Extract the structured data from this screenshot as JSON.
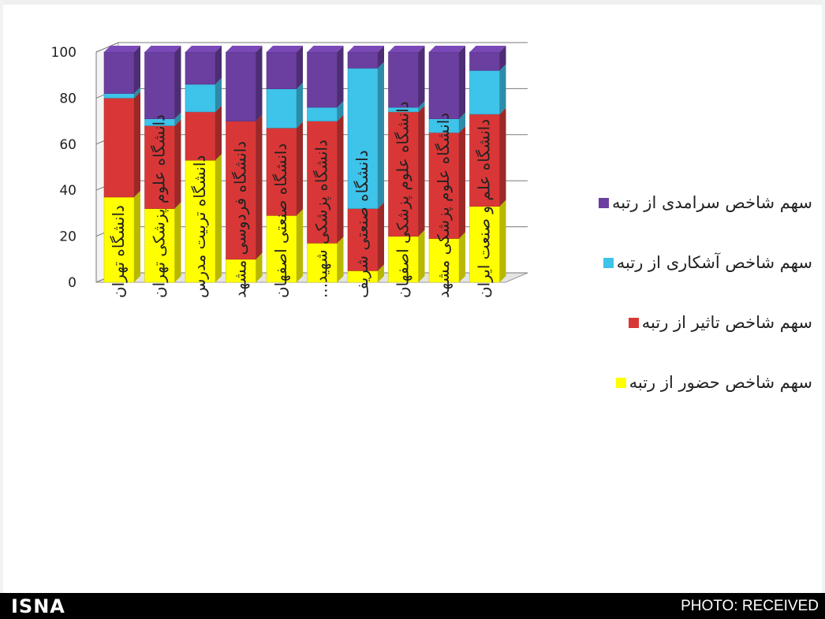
{
  "chart_data": {
    "type": "bar",
    "stacked": true,
    "ylim": [
      0,
      100
    ],
    "yticks": [
      "0",
      "20",
      "40",
      "60",
      "80",
      "100"
    ],
    "categories": [
      "دانشگاه تهران",
      "دانشگاه علوم پزشکی تهران",
      "دانشگاه تربیت مدرس",
      "دانشگاه فردوسی مشهد",
      "دانشگاه صنعتی اصفهان",
      "دانشگاه پزشکی شهید...",
      "دانشگاه صنعتی شریف",
      "دانشگاه علوم پزشکی اصفهان",
      "دانشگاه علوم پزشکی مشهد",
      "دانشگاه علم و صنعت ایران"
    ],
    "series": [
      {
        "name": "سهم شاخص حضور از رتبه",
        "color": "#ffff00",
        "values": [
          37,
          32,
          53,
          10,
          29,
          17,
          5,
          20,
          19,
          33
        ]
      },
      {
        "name": "سهم شاخص تاثیر از رتبه",
        "color": "#d93737",
        "values": [
          43,
          36,
          21,
          60,
          38,
          53,
          27,
          54,
          46,
          40
        ]
      },
      {
        "name": "سهم شاخص آشکاری از رتبه",
        "color": "#3ec3ea",
        "values": [
          2,
          3,
          12,
          0,
          17,
          6,
          61,
          2,
          6,
          19
        ]
      },
      {
        "name": "سهم شاخص سرامدی از رتبه",
        "color": "#6b3fa0",
        "values": [
          18,
          29,
          14,
          30,
          16,
          24,
          7,
          24,
          29,
          8
        ]
      }
    ],
    "legend_position": "right",
    "grid": true
  },
  "legend": {
    "items": [
      {
        "label": "سهم شاخص سرامدی از رتبه",
        "color": "#6b3fa0"
      },
      {
        "label": "سهم شاخص آشکاری از رتبه",
        "color": "#3ec3ea"
      },
      {
        "label": "سهم شاخص تاثیر از رتبه",
        "color": "#d93737"
      },
      {
        "label": "سهم شاخص حضور از رتبه",
        "color": "#ffff00"
      }
    ]
  },
  "footer": {
    "logo": "ISNA",
    "credit": "PHOTO: RECEIVED"
  }
}
